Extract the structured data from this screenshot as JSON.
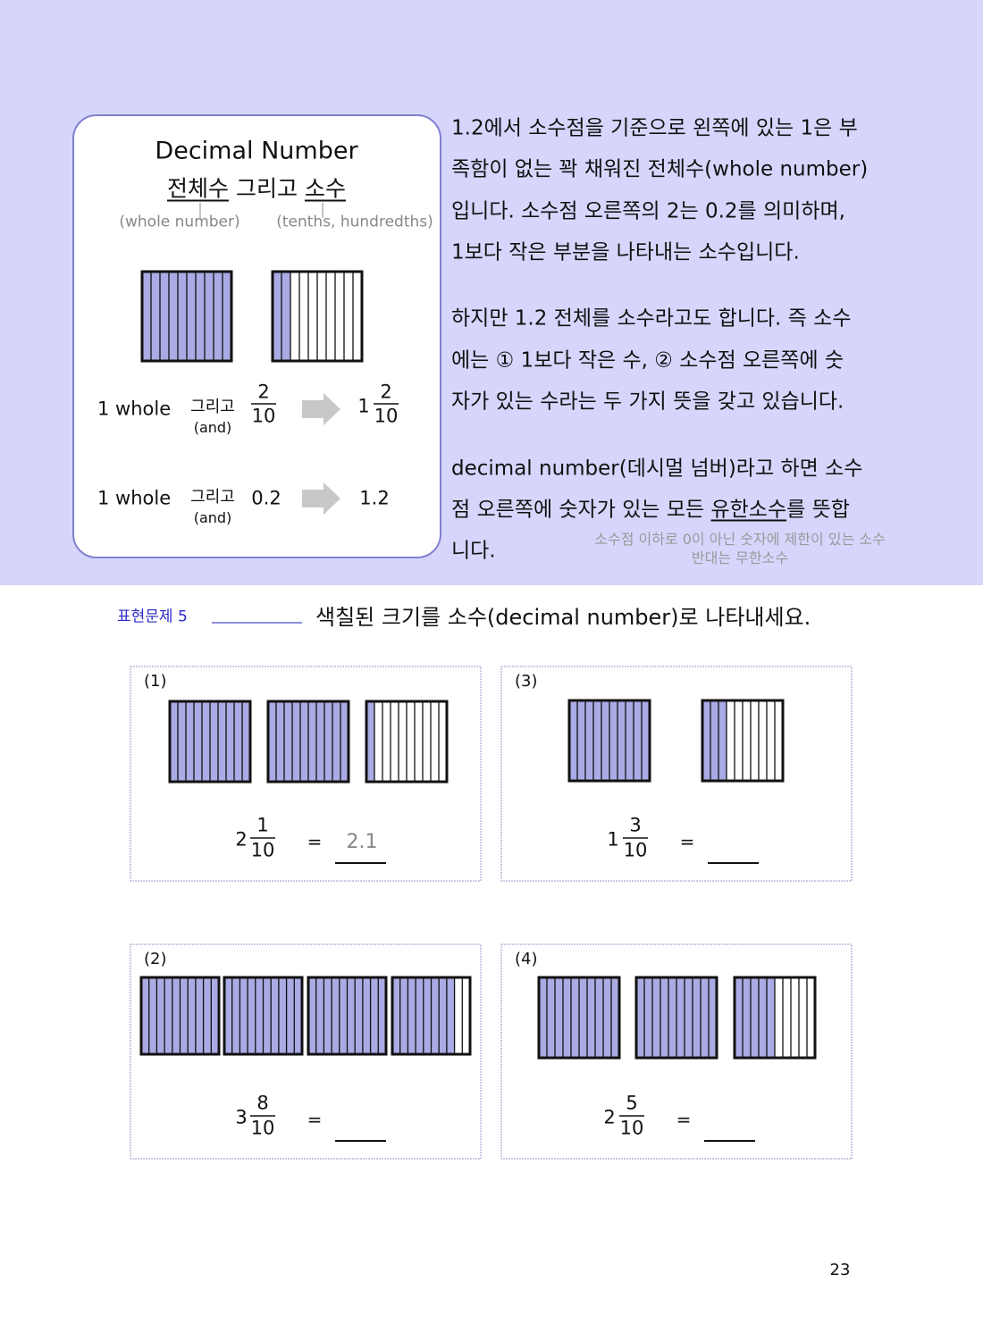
{
  "intro_box": {
    "title": "Decimal Number",
    "subtitle": {
      "whole": "전체수",
      "and": "그리고",
      "decimal": "소수"
    },
    "whole_note": "(whole number)",
    "decimal_note": "(tenths, hundredths)",
    "row1": {
      "whole": "1 whole",
      "and": "그리고",
      "and_en": "(and)",
      "numerator": "2",
      "denominator": "10",
      "result_whole": "1",
      "result_numerator": "2",
      "result_denominator": "10"
    },
    "row2": {
      "whole": "1 whole",
      "and": "그리고",
      "and_en": "(and)",
      "decimal": "0.2",
      "result": "1.2"
    }
  },
  "explanation": {
    "paragraph1": [
      "1.2에서 소수점을 기준으로 왼쪽에 있는 1은 부",
      "족함이 없는 꽉 채워진 전체수(whole number)",
      "입니다.  소수점 오른쪽의 2는 0.2를 의미하며,",
      "1보다 작은 부분을 나타내는 소수입니다."
    ],
    "paragraph2": [
      "하지만 1.2 전체를 소수라고도 합니다. 즉 소수",
      "에는 ① 1보다 작은 수,  ② 소수점 오른쪽에 숫",
      "자가 있는 수라는 두 가지 뜻을 갖고 있습니다."
    ],
    "paragraph3": {
      "line1": "decimal number(데시멀 넘버)라고 하면 소수",
      "line2_before": "점 오른쪽에 숫자가 있는 모든 ",
      "line2_underlined": "유한소수",
      "line2_after": "를 뜻합",
      "line3": "니다."
    },
    "note": [
      "소수점 이하로 0이 아닌 숫자에 제한이 있는 소수",
      "반대는 무한소수"
    ]
  },
  "exercise": {
    "label": "표현문제 5",
    "instruction": "색칠된 크기를 소수(decimal number)로 나타내세요.",
    "problems": [
      {
        "label": "(1)",
        "whole": "2",
        "numerator": "1",
        "denominator": "10",
        "equals": "=",
        "answer": "2.1"
      },
      {
        "label": "(2)",
        "whole": "3",
        "numerator": "8",
        "denominator": "10",
        "equals": "="
      },
      {
        "label": "(3)",
        "whole": "1",
        "numerator": "3",
        "denominator": "10",
        "equals": "="
      },
      {
        "label": "(4)",
        "whole": "2",
        "numerator": "5",
        "denominator": "10",
        "equals": "="
      }
    ]
  },
  "page_number": "23"
}
